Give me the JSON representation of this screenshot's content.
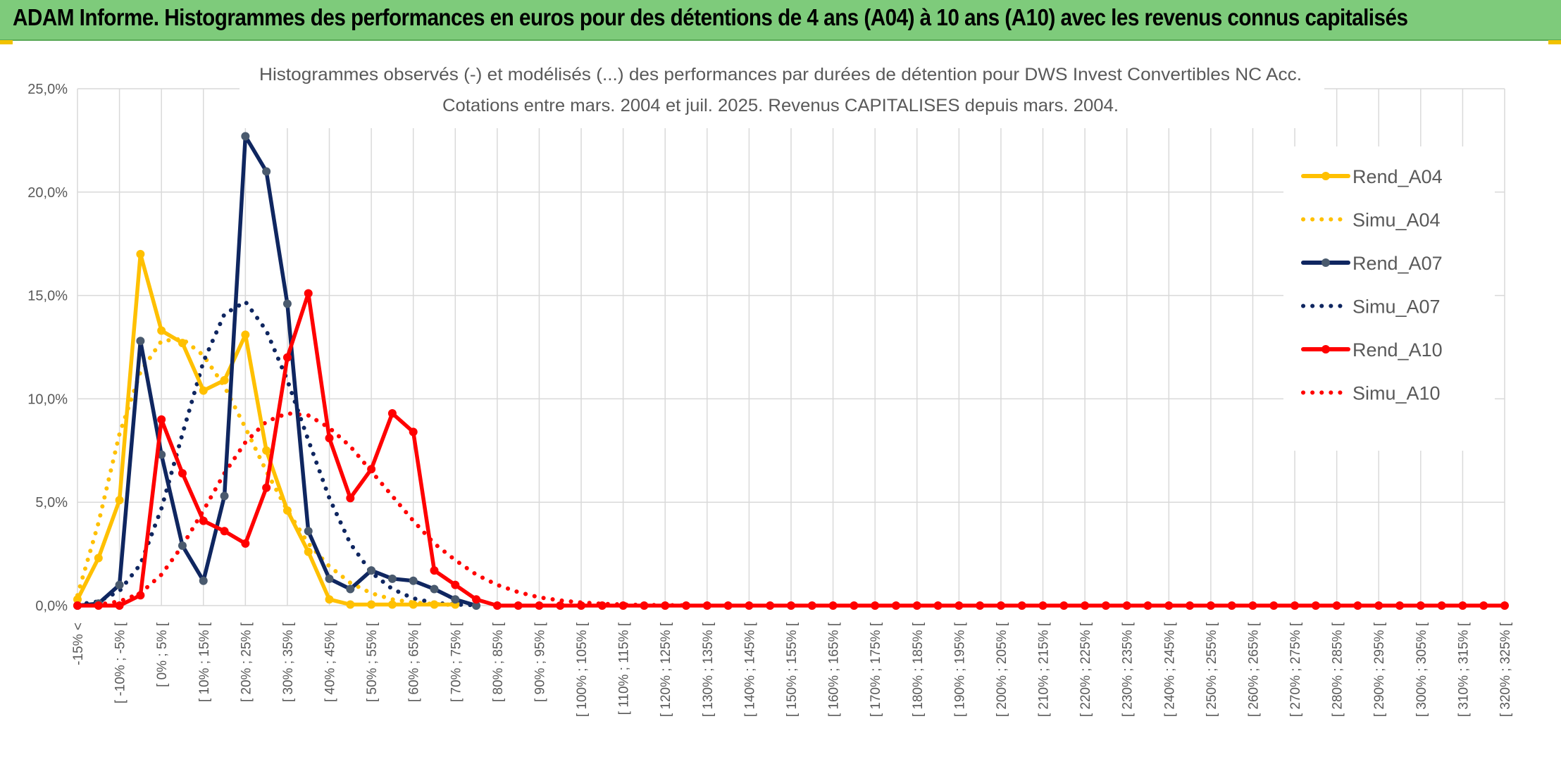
{
  "banner": {
    "title": "ADAM Informe. Histogrammes des performances en euros pour des détentions de 4 ans (A04) à 10 ans (A10) avec les revenus connus capitalisés"
  },
  "colors": {
    "banner_bg": "#7ecb7b",
    "A04": "#ffc000",
    "A07": "#0f2660",
    "A10": "#ff0000",
    "marker_A07": "#4a5a6e",
    "grid": "#d9d9d9",
    "text": "#595959"
  },
  "chart_data": {
    "type": "line",
    "title": "Histogrammes observés (-) et modélisés (...) des performances par durées de détention pour DWS Invest Convertibles NC Acc.",
    "subtitle": "Cotations entre mars. 2004 et juil. 2025. Revenus CAPITALISES depuis mars. 2004.",
    "xlabel": "",
    "ylabel": "",
    "ylim": [
      0,
      25
    ],
    "y_ticks": [
      "0,0%",
      "5,0%",
      "10,0%",
      "15,0%",
      "20,0%",
      "25,0%"
    ],
    "grid": true,
    "legend_position": "right",
    "x_tick_labels": [
      "-15% <",
      "[ -10% ; -5% [",
      "[ 0% ; 5% [",
      "[ 10% ; 15% [",
      "[ 20% ; 25% [",
      "[ 30% ; 35% [",
      "[ 40% ; 45% [",
      "[ 50% ; 55% [",
      "[ 60% ; 65% [",
      "[ 70% ; 75% [",
      "[ 80% ; 85% [",
      "[ 90% ; 95% [",
      "[ 100% ; 105% [",
      "[ 110% ; 115% [",
      "[ 120% ; 125% [",
      "[ 130% ; 135% [",
      "[ 140% ; 145% [",
      "[ 150% ; 155% [",
      "[ 160% ; 165% [",
      "[ 170% ; 175% [",
      "[ 180% ; 185% [",
      "[ 190% ; 195% [",
      "[ 200% ; 205% [",
      "[ 210% ; 215% [",
      "[ 220% ; 225% [",
      "[ 230% ; 235% [",
      "[ 240% ; 245% [",
      "[ 250% ; 255% [",
      "[ 260% ; 265% [",
      "[ 270% ; 275% [",
      "[ 280% ; 285% [",
      "[ 290% ; 295% [",
      "[ 300% ; 305% [",
      "[ 310% ; 315% [",
      "[ 320% ; 325% ["
    ],
    "categories_count": 69,
    "series": [
      {
        "name": "Rend_A04",
        "style": "solid",
        "color": "#ffc000",
        "markers": true,
        "values": [
          0.3,
          2.3,
          5.1,
          17.0,
          13.3,
          12.7,
          10.4,
          10.9,
          13.1,
          7.5,
          4.6,
          2.6,
          0.3,
          0.05,
          0.05,
          0.05,
          0.05,
          0.05,
          0.05
        ]
      },
      {
        "name": "Simu_A04",
        "style": "dotted",
        "color": "#ffc000",
        "markers": false,
        "values": [
          0.5,
          4.0,
          8.3,
          11.3,
          12.8,
          12.9,
          12.1,
          10.6,
          8.6,
          6.5,
          4.6,
          3.0,
          1.9,
          1.1,
          0.6,
          0.3,
          0.15,
          0.07,
          0.03
        ]
      },
      {
        "name": "Rend_A07",
        "style": "solid",
        "color": "#0f2660",
        "markers": true,
        "values": [
          0.0,
          0.1,
          1.0,
          12.8,
          7.3,
          2.9,
          1.2,
          5.3,
          22.7,
          21.0,
          14.6,
          3.6,
          1.3,
          0.8,
          1.7,
          1.3,
          1.2,
          0.8,
          0.3,
          0.0
        ]
      },
      {
        "name": "Simu_A07",
        "style": "dotted",
        "color": "#0f2660",
        "markers": false,
        "values": [
          0.05,
          0.2,
          0.7,
          2.0,
          4.7,
          8.3,
          11.8,
          14.1,
          14.7,
          13.3,
          10.9,
          8.0,
          5.2,
          3.0,
          1.6,
          0.8,
          0.35,
          0.13,
          0.05,
          0.02
        ]
      },
      {
        "name": "Rend_A10",
        "style": "solid",
        "color": "#ff0000",
        "markers": true,
        "values": [
          0.0,
          0.0,
          0.0,
          0.5,
          9.0,
          6.4,
          4.1,
          3.6,
          3.0,
          5.7,
          12.0,
          15.1,
          8.1,
          5.2,
          6.6,
          9.3,
          8.4,
          1.7,
          1.0,
          0.3,
          0.0,
          0,
          0,
          0,
          0,
          0,
          0,
          0,
          0,
          0,
          0,
          0,
          0,
          0,
          0,
          0,
          0,
          0,
          0,
          0,
          0,
          0,
          0,
          0,
          0,
          0,
          0,
          0,
          0,
          0,
          0,
          0,
          0,
          0,
          0,
          0,
          0,
          0,
          0,
          0,
          0,
          0,
          0,
          0,
          0,
          0,
          0,
          0,
          0
        ]
      },
      {
        "name": "Simu_A10",
        "style": "dotted",
        "color": "#ff0000",
        "markers": false,
        "values": [
          0.0,
          0.05,
          0.2,
          0.6,
          1.5,
          2.9,
          4.6,
          6.4,
          7.9,
          8.9,
          9.3,
          9.2,
          8.6,
          7.7,
          6.5,
          5.3,
          4.1,
          3.0,
          2.2,
          1.5,
          1.0,
          0.65,
          0.4,
          0.25,
          0.15,
          0.09,
          0.05,
          0.03,
          0.02,
          0.01
        ]
      }
    ]
  }
}
